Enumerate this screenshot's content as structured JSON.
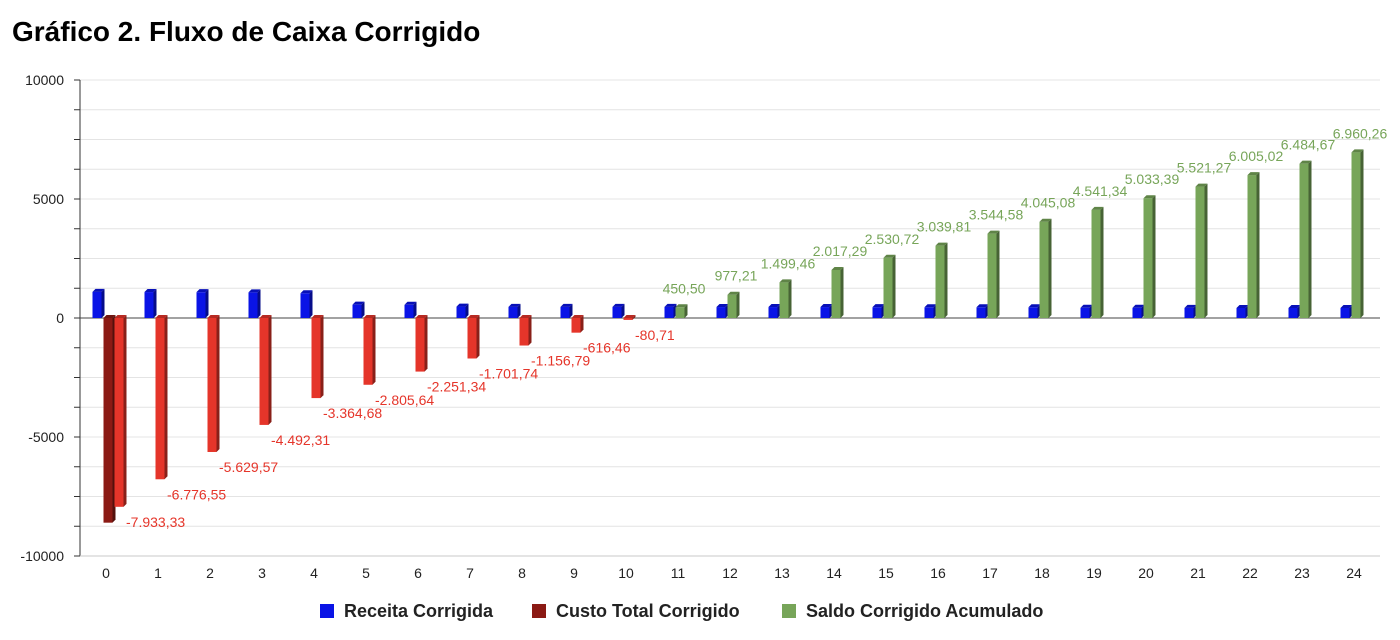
{
  "chart_data": {
    "type": "bar",
    "title": "Gráfico 2. Fluxo de Caixa Corrigido",
    "xlabel": "",
    "ylabel": "",
    "ylim": [
      -10000,
      10000
    ],
    "y_ticks": [
      10000,
      5000,
      0,
      -5000,
      -10000
    ],
    "grid": true,
    "legend_position": "bottom",
    "categories": [
      "0",
      "1",
      "2",
      "3",
      "4",
      "5",
      "6",
      "7",
      "8",
      "9",
      "10",
      "11",
      "12",
      "13",
      "14",
      "15",
      "16",
      "17",
      "18",
      "19",
      "20",
      "21",
      "22",
      "23",
      "24"
    ],
    "series": [
      {
        "name": "Receita Corrigida",
        "color": "#0a14e6",
        "values": [
          1100,
          1090,
          1085,
          1075,
          1040,
          560,
          555,
          480,
          470,
          470,
          470,
          470,
          460,
          460,
          460,
          455,
          450,
          450,
          450,
          430,
          430,
          425,
          420,
          420,
          420
        ]
      },
      {
        "name": "Custo Total Corrigido",
        "color": "#8b1a14",
        "values": [
          -8600,
          0,
          0,
          0,
          0,
          0,
          0,
          0,
          0,
          0,
          0,
          0,
          0,
          0,
          0,
          0,
          0,
          0,
          0,
          0,
          0,
          0,
          0,
          0,
          0
        ]
      },
      {
        "name": "Saldo Corrigido Acumulado",
        "color_negative": "#e5352a",
        "color_positive": "#77a559",
        "values": [
          -7933.33,
          -6776.55,
          -5629.57,
          -4492.31,
          -3364.68,
          -2805.64,
          -2251.34,
          -1701.74,
          -1156.79,
          -616.46,
          -80.71,
          450.5,
          977.21,
          1499.46,
          2017.29,
          2530.72,
          3039.81,
          3544.58,
          4045.08,
          4541.34,
          5033.39,
          5521.27,
          6005.02,
          6484.67,
          6960.26
        ],
        "labels": [
          "-7.933,33",
          "-6.776,55",
          "-5.629,57",
          "-4.492,31",
          "-3.364,68",
          "-2.805,64",
          "-2.251,34",
          "-1.701,74",
          "-1.156,79",
          "-616,46",
          "-80,71",
          "450,50",
          "977,21",
          "1.499,46",
          "2.017,29",
          "2.530,72",
          "3.039,81",
          "3.544,58",
          "4.045,08",
          "4.541,34",
          "5.033,39",
          "5.521,27",
          "6.005,02",
          "6.484,67",
          "6.960,26"
        ]
      }
    ]
  }
}
